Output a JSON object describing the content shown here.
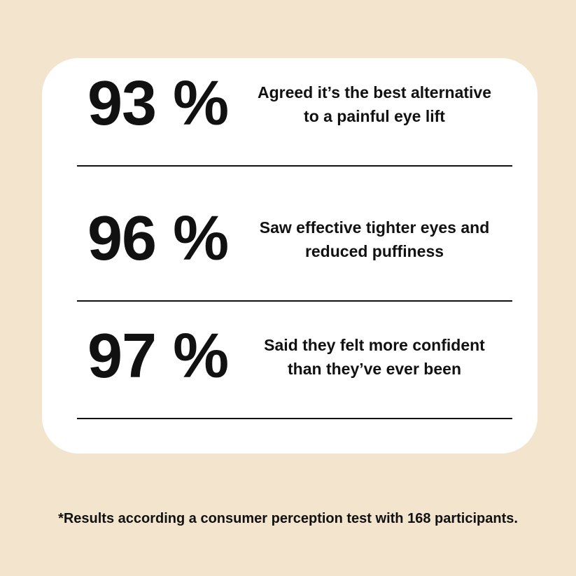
{
  "stats": [
    {
      "figure": "93 %",
      "lines": [
        "Agreed it’s the best alternative",
        "to a painful eye lift"
      ]
    },
    {
      "figure": "96 %",
      "lines": [
        "Saw effective tighter eyes and",
        "reduced puffiness"
      ]
    },
    {
      "figure": "97 %",
      "lines": [
        "Said they felt more confident",
        "than they’ve ever been"
      ]
    }
  ],
  "footnote": "*Results according a consumer perception test with 168 participants."
}
